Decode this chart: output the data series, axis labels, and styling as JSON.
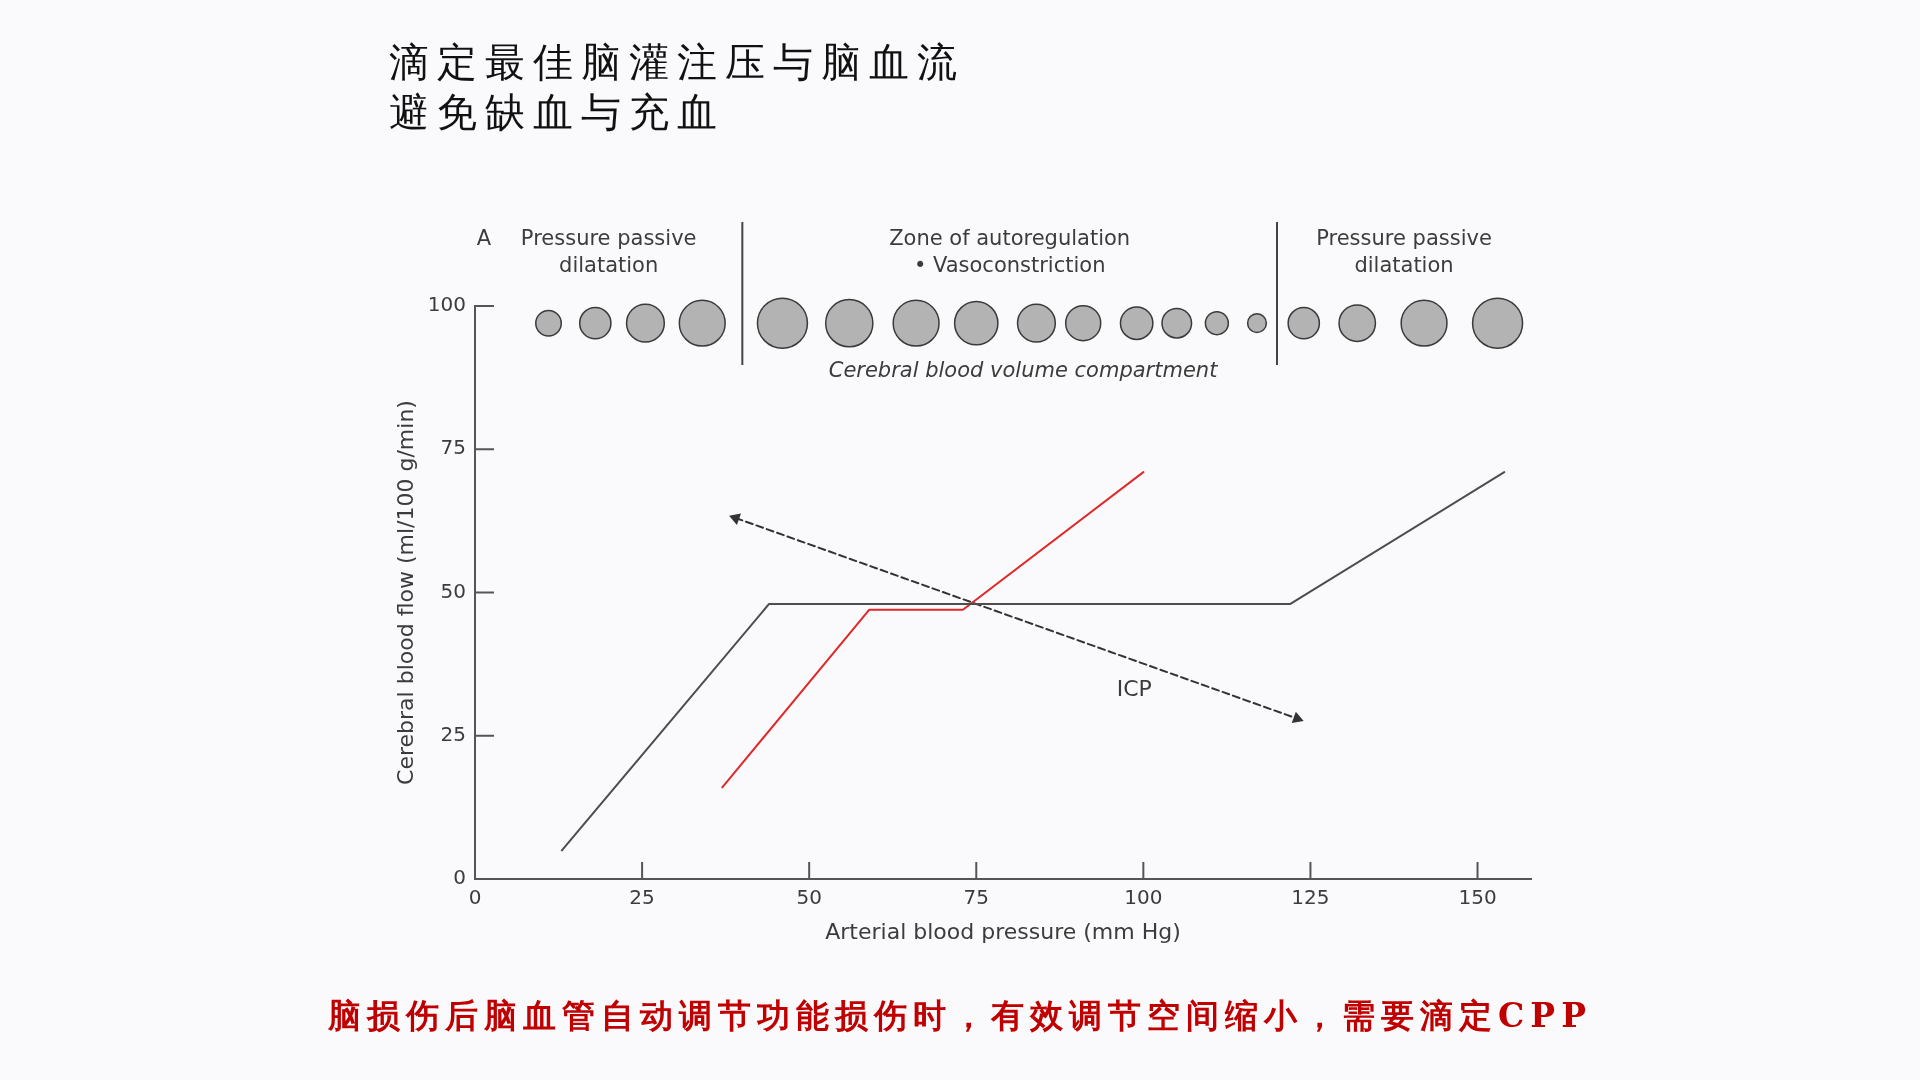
{
  "chart_data": {
    "type": "line",
    "title": "滴定最佳脑灌注压与脑血流",
    "subtitle": "避免缺血与充血",
    "xlabel": "Arterial blood pressure (mm Hg)",
    "ylabel": "Cerebral blood flow (ml/100 g/min)",
    "xlim": [
      0,
      158
    ],
    "ylim": [
      0,
      100
    ],
    "xticks": [
      0,
      25,
      50,
      75,
      100,
      125,
      150
    ],
    "yticks": [
      0,
      25,
      50,
      75,
      100
    ],
    "series": [
      {
        "color": "#4d4d4d",
        "x": [
          13,
          44,
          122,
          154
        ],
        "values": [
          5,
          48,
          48,
          71
        ]
      },
      {
        "color": "#e02828",
        "x": [
          37,
          59,
          73,
          100
        ],
        "values": [
          16,
          47,
          47,
          71
        ]
      },
      {
        "name": "ICP",
        "color": "#333333",
        "line_style": "dashed",
        "marker": "triangle",
        "x": [
          39,
          123
        ],
        "values": [
          63,
          28
        ]
      },
      {
        "name": "Cerebral blood volume compartment",
        "type": "bubble",
        "color": "#b3b3b3",
        "x": [
          11,
          18,
          25.5,
          34,
          46,
          56,
          66,
          75,
          84,
          91,
          99,
          105,
          111,
          117,
          124,
          132,
          142,
          153
        ],
        "values": [
          97,
          97,
          97,
          97,
          97,
          97,
          97,
          97,
          97,
          97,
          97,
          97,
          97,
          97,
          97,
          97,
          97,
          97
        ],
        "sizes": [
          0.26,
          0.39,
          0.57,
          0.84,
          1,
          0.89,
          0.84,
          0.75,
          0.57,
          0.49,
          0.42,
          0.35,
          0.21,
          0.14,
          0.39,
          0.53,
          0.84,
          1
        ]
      }
    ],
    "ref_lines": [
      {
        "axis": "x",
        "value": 40,
        "color": "#444444"
      },
      {
        "axis": "x",
        "value": 120,
        "color": "#444444"
      }
    ],
    "annotations": [
      "A",
      "Pressure passive\ndilatation",
      "Zone of autoregulation\n• Vasoconstriction",
      "Pressure passive\ndilatation",
      "脑损伤后脑血管自动调节功能损伤时，有效调节空间缩小，需要滴定CPP"
    ]
  }
}
